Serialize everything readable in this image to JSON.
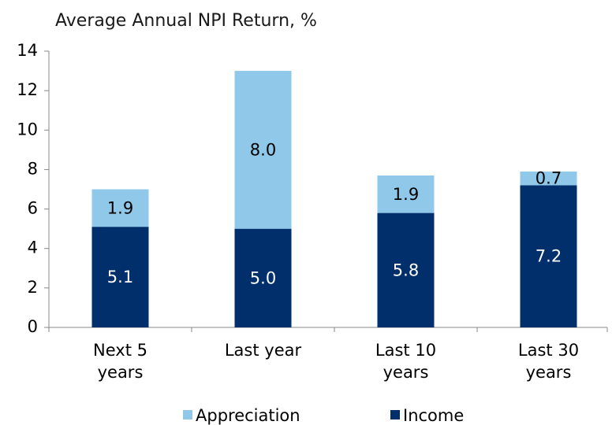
{
  "chart_data": {
    "type": "stacked_bar",
    "title": "Average Annual NPI Return, %",
    "categories": [
      "Next 5 years",
      "Last year",
      "Last 10 years",
      "Last 30 years"
    ],
    "series": [
      {
        "name": "Income",
        "color": "#002f6c",
        "label_color": "#ffffff",
        "values": [
          5.1,
          5.0,
          5.8,
          7.2
        ],
        "value_labels": [
          "5.1",
          "5.0",
          "5.8",
          "7.2"
        ]
      },
      {
        "name": "Appreciation",
        "color": "#8fc8e8",
        "label_color": "#000000",
        "values": [
          1.9,
          8.0,
          1.9,
          0.7
        ],
        "value_labels": [
          "1.9",
          "8.0",
          "1.9",
          "0.7"
        ]
      }
    ],
    "ylim": [
      0,
      14
    ],
    "yticks": [
      0,
      2,
      4,
      6,
      8,
      10,
      12,
      14
    ],
    "legend": "bottom"
  }
}
